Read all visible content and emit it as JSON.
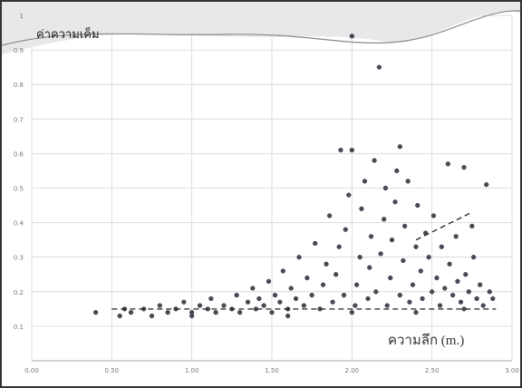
{
  "chart_data": {
    "type": "scatter",
    "y_label": "ค่าความเค็ม",
    "x_label": "ความลึก (m.)",
    "color": "#4a4a5a",
    "grid": true,
    "xlim": [
      0,
      3
    ],
    "ylim": [
      0,
      1
    ],
    "xticks": [
      {
        "value": 0,
        "label": "0.00"
      },
      {
        "value": 0.5,
        "label": "0.50"
      },
      {
        "value": 1,
        "label": "1.00"
      },
      {
        "value": 1.5,
        "label": "1.50"
      },
      {
        "value": 2,
        "label": "2.00"
      },
      {
        "value": 2.5,
        "label": "2.50"
      },
      {
        "value": 3,
        "label": "3.00"
      }
    ],
    "yticks": [
      0.1,
      0.2,
      0.3,
      0.4,
      0.5,
      0.6,
      0.7,
      0.8,
      0.9,
      1
    ],
    "x": [
      0.4,
      0.55,
      0.58,
      0.62,
      0.7,
      0.75,
      0.8,
      0.85,
      0.9,
      0.95,
      1.0,
      1.05,
      1.1,
      1.12,
      1.15,
      1.2,
      1.25,
      1.28,
      1.3,
      1.35,
      1.38,
      1.4,
      1.42,
      1.45,
      1.48,
      1.5,
      1.52,
      1.55,
      1.57,
      1.6,
      1.62,
      1.65,
      1.67,
      1.7,
      1.72,
      1.75,
      1.77,
      1.8,
      1.82,
      1.84,
      1.86,
      1.88,
      1.9,
      1.92,
      1.93,
      1.95,
      1.96,
      1.98,
      2.0,
      2.0,
      2.02,
      2.03,
      2.05,
      2.06,
      2.08,
      2.1,
      2.11,
      2.12,
      2.14,
      2.15,
      2.17,
      2.18,
      2.2,
      2.21,
      2.22,
      2.24,
      2.25,
      2.27,
      2.28,
      2.3,
      2.3,
      2.32,
      2.33,
      2.35,
      2.36,
      2.38,
      2.4,
      2.41,
      2.43,
      2.44,
      2.46,
      2.48,
      2.5,
      2.51,
      2.53,
      2.55,
      2.56,
      2.58,
      2.6,
      2.61,
      2.63,
      2.65,
      2.66,
      2.68,
      2.7,
      2.71,
      2.73,
      2.75,
      2.76,
      2.78,
      2.8,
      2.82,
      2.84,
      2.86,
      2.88,
      1.0,
      1.6,
      2.0,
      2.4,
      2.7
    ],
    "values": [
      0.14,
      0.13,
      0.15,
      0.14,
      0.15,
      0.13,
      0.16,
      0.14,
      0.15,
      0.17,
      0.14,
      0.16,
      0.15,
      0.18,
      0.14,
      0.16,
      0.15,
      0.19,
      0.14,
      0.17,
      0.21,
      0.15,
      0.18,
      0.16,
      0.23,
      0.14,
      0.19,
      0.17,
      0.26,
      0.15,
      0.21,
      0.18,
      0.3,
      0.16,
      0.24,
      0.19,
      0.34,
      0.15,
      0.22,
      0.28,
      0.42,
      0.17,
      0.25,
      0.33,
      0.61,
      0.19,
      0.38,
      0.48,
      0.61,
      0.94,
      0.16,
      0.22,
      0.3,
      0.44,
      0.52,
      0.18,
      0.27,
      0.36,
      0.58,
      0.2,
      0.85,
      0.31,
      0.41,
      0.5,
      0.16,
      0.24,
      0.35,
      0.46,
      0.55,
      0.19,
      0.62,
      0.29,
      0.39,
      0.52,
      0.17,
      0.22,
      0.33,
      0.45,
      0.26,
      0.18,
      0.37,
      0.3,
      0.2,
      0.42,
      0.24,
      0.16,
      0.33,
      0.21,
      0.57,
      0.28,
      0.19,
      0.36,
      0.23,
      0.17,
      0.56,
      0.25,
      0.2,
      0.39,
      0.3,
      0.18,
      0.22,
      0.16,
      0.51,
      0.2,
      0.18,
      0.13,
      0.13,
      0.14,
      0.14,
      0.15
    ],
    "lines": [
      {
        "x": [
          0.5,
          2.9
        ],
        "y": [
          0.15,
          0.15
        ]
      },
      {
        "x": [
          2.4,
          2.75
        ],
        "y": [
          0.35,
          0.43
        ]
      }
    ]
  }
}
